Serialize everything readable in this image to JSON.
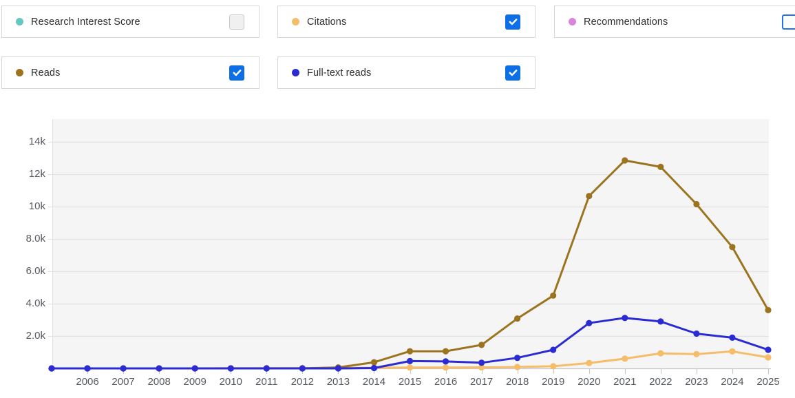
{
  "legend": {
    "checkbox_color": "#0c6fe8",
    "items": [
      {
        "id": "research-interest-score",
        "label": "Research Interest Score",
        "color": "#63c8c0",
        "checked": false,
        "checkbox_style": "disabled"
      },
      {
        "id": "citations",
        "label": "Citations",
        "color": "#f5bd69",
        "checked": true,
        "checkbox_style": "checked"
      },
      {
        "id": "recommendations",
        "label": "Recommendations",
        "color": "#d885dd",
        "checked": false,
        "checkbox_style": "enabled"
      },
      {
        "id": "reads",
        "label": "Reads",
        "color": "#9c7420",
        "checked": true,
        "checkbox_style": "checked"
      },
      {
        "id": "full-text-reads",
        "label": "Full-text reads",
        "color": "#2b2bd4",
        "checked": true,
        "checkbox_style": "checked"
      }
    ]
  },
  "chart_data": {
    "type": "line",
    "title": "",
    "xlabel": "",
    "ylabel": "",
    "grid": true,
    "legend_position": "top",
    "ylim": [
      0,
      15400
    ],
    "x": [
      2005,
      2006,
      2007,
      2008,
      2009,
      2010,
      2011,
      2012,
      2013,
      2014,
      2015,
      2016,
      2017,
      2018,
      2019,
      2020,
      2021,
      2022,
      2023,
      2024,
      2025
    ],
    "x_tick_labels": [
      "2006",
      "2007",
      "2008",
      "2009",
      "2010",
      "2011",
      "2012",
      "2013",
      "2014",
      "2015",
      "2016",
      "2017",
      "2018",
      "2019",
      "2020",
      "2021",
      "2022",
      "2023",
      "2024",
      "2025"
    ],
    "y_ticks": [
      {
        "label": "2.0k",
        "value": 2000
      },
      {
        "label": "4.0k",
        "value": 4000
      },
      {
        "label": "6.0k",
        "value": 6000
      },
      {
        "label": "8.0k",
        "value": 8000
      },
      {
        "label": "10k",
        "value": 10000
      },
      {
        "label": "12k",
        "value": 12000
      },
      {
        "label": "14k",
        "value": 14000
      }
    ],
    "series": [
      {
        "name": "Citations",
        "color": "#f5bd69",
        "values": [
          0,
          0,
          0,
          0,
          0,
          10,
          15,
          20,
          25,
          40,
          55,
          55,
          65,
          85,
          130,
          330,
          600,
          930,
          880,
          1050,
          680
        ]
      },
      {
        "name": "Reads",
        "color": "#9c7420",
        "values": [
          0,
          0,
          0,
          0,
          0,
          0,
          0,
          0,
          60,
          380,
          1060,
          1060,
          1450,
          3080,
          4500,
          10650,
          12850,
          12450,
          10150,
          7500,
          3600
        ]
      },
      {
        "name": "Full-text reads",
        "color": "#2b2bd4",
        "values": [
          0,
          0,
          0,
          0,
          0,
          0,
          0,
          0,
          0,
          20,
          450,
          430,
          350,
          650,
          1150,
          2800,
          3120,
          2900,
          2150,
          1900,
          1150
        ]
      }
    ],
    "colors": {
      "plot_background": "#f5f5f6",
      "gridline": "#e2e2e4",
      "axis_line": "#c7c7c9",
      "tick": "#c9c9c9",
      "tick_label": "#55595e"
    }
  }
}
